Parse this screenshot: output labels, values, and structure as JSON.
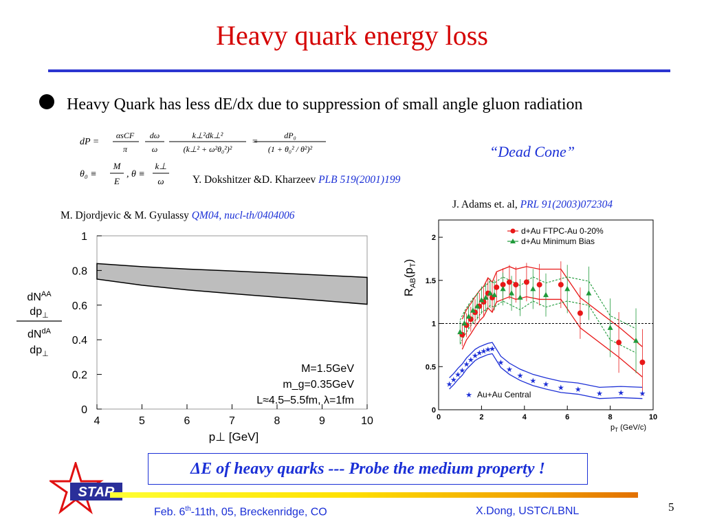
{
  "slide": {
    "title": "Heavy quark energy loss",
    "bullet": "Heavy Quark has less dE/dx  due to suppression of small angle gluon radiation",
    "dead_cone": "“Dead Cone”",
    "ref_dokshitzer": {
      "authors": "Y. Dokshitzer &D. Kharzeev",
      "citation": "PLB 519(2001)199"
    },
    "ref_djordjevic": {
      "authors": "M. Djordjevic & M. Gyulassy",
      "citation": "QM04, nucl-th/0404006"
    },
    "ref_adams": {
      "authors": "J. Adams et. al,",
      "citation": "PRL 91(2003)072304"
    },
    "probe_text": "ΔE of heavy quarks --- Probe the medium property !",
    "footer": {
      "date_prefix": "Feb. 6",
      "date_sup": "th",
      "date_suffix": "-11th, 05, Breckenridge, CO",
      "author": "X.Dong,  USTC/LBNL"
    },
    "page_number": "5",
    "logo_text": "STAR"
  },
  "equations": {
    "eq1_lhs": "dP =",
    "eq1_f1_num": "αsCF",
    "eq1_f1_den": "π",
    "eq1_f2_num": "dω",
    "eq1_f2_den": "ω",
    "eq1_f3_num": "k⊥²dk⊥²",
    "eq1_f3_den": "(k⊥² + ω²θ₀²)²",
    "eq1_eq": "=",
    "eq1_f4_num": "dP₀",
    "eq1_f4_den": "(1 + θ₀² / θ²)²",
    "eq2_lhs": "θ₀ ≡",
    "eq2_f1_num": "M",
    "eq2_f1_den": "E",
    "eq2_mid": ", θ ≡",
    "eq2_f2_num": "k⊥",
    "eq2_f2_den": "ω"
  },
  "chart_data": [
    {
      "type": "area",
      "title": "",
      "xlabel": "p⊥ [GeV]",
      "ylabel_top": "dN^AA / dp⊥",
      "ylabel_bottom": "dN^dA / dp⊥",
      "xlim": [
        4,
        10
      ],
      "ylim": [
        0,
        1
      ],
      "x_ticks": [
        "4",
        "5",
        "6",
        "7",
        "8",
        "9",
        "10"
      ],
      "y_ticks": [
        "0",
        "0.2",
        "0.4",
        "0.6",
        "0.8",
        "1"
      ],
      "grid": false,
      "band": {
        "color": "#bdbdbd",
        "x": [
          4,
          5,
          6,
          7,
          8,
          9,
          10
        ],
        "upper": [
          0.84,
          0.822,
          0.808,
          0.797,
          0.785,
          0.773,
          0.76
        ],
        "lower": [
          0.75,
          0.715,
          0.688,
          0.666,
          0.646,
          0.626,
          0.605
        ]
      },
      "annotations": [
        "M=1.5GeV",
        "m_g=0.35GeV",
        "L≈4.5–5.5fm, λ=1fm"
      ]
    },
    {
      "type": "scatter",
      "title": "",
      "xlabel": "p_T (GeV/c)",
      "ylabel": "R_AB(p_T)",
      "xlim": [
        0,
        10
      ],
      "ylim": [
        0,
        2.2
      ],
      "x_ticks": [
        "0",
        "2",
        "4",
        "6",
        "8",
        "10"
      ],
      "y_ticks": [
        "0",
        "0.5",
        "1",
        "1.5",
        "2"
      ],
      "reference_line": 1,
      "legend_position": "top-right",
      "series": [
        {
          "name": "d+Au FTPC-Au 0-20%",
          "color": "#e81818",
          "marker": "circle",
          "x": [
            1.1,
            1.3,
            1.5,
            1.7,
            1.9,
            2.1,
            2.3,
            2.5,
            2.7,
            3.0,
            3.3,
            3.6,
            4.1,
            4.7,
            5.7,
            6.6,
            8.4,
            9.5
          ],
          "y": [
            0.87,
            0.98,
            1.05,
            1.13,
            1.2,
            1.25,
            1.35,
            1.3,
            1.42,
            1.45,
            1.48,
            1.45,
            1.48,
            1.45,
            1.45,
            1.12,
            0.78,
            0.55
          ]
        },
        {
          "name": "d+Au Minimum Bias",
          "color": "#1f9a3a",
          "marker": "triangle",
          "x": [
            1.0,
            1.2,
            1.4,
            1.6,
            1.8,
            2.0,
            2.2,
            2.4,
            2.6,
            3.0,
            3.4,
            3.8,
            4.4,
            5.0,
            6.0,
            7.0,
            8.0,
            9.2
          ],
          "y": [
            0.9,
            1.0,
            1.08,
            1.15,
            1.2,
            1.27,
            1.3,
            1.35,
            1.33,
            1.4,
            1.35,
            1.3,
            1.4,
            1.33,
            1.4,
            1.35,
            0.95,
            0.8
          ]
        },
        {
          "name": "Au+Au Central",
          "color": "#1c2fd6",
          "marker": "star",
          "x": [
            0.5,
            0.7,
            0.9,
            1.1,
            1.3,
            1.5,
            1.7,
            1.9,
            2.1,
            2.3,
            2.5,
            2.9,
            3.3,
            3.8,
            4.4,
            5.0,
            5.7,
            6.5,
            7.5,
            8.5,
            9.5
          ],
          "y": [
            0.3,
            0.35,
            0.41,
            0.46,
            0.53,
            0.58,
            0.63,
            0.66,
            0.68,
            0.7,
            0.71,
            0.55,
            0.47,
            0.4,
            0.34,
            0.3,
            0.26,
            0.24,
            0.19,
            0.2,
            0.19
          ]
        }
      ]
    }
  ]
}
